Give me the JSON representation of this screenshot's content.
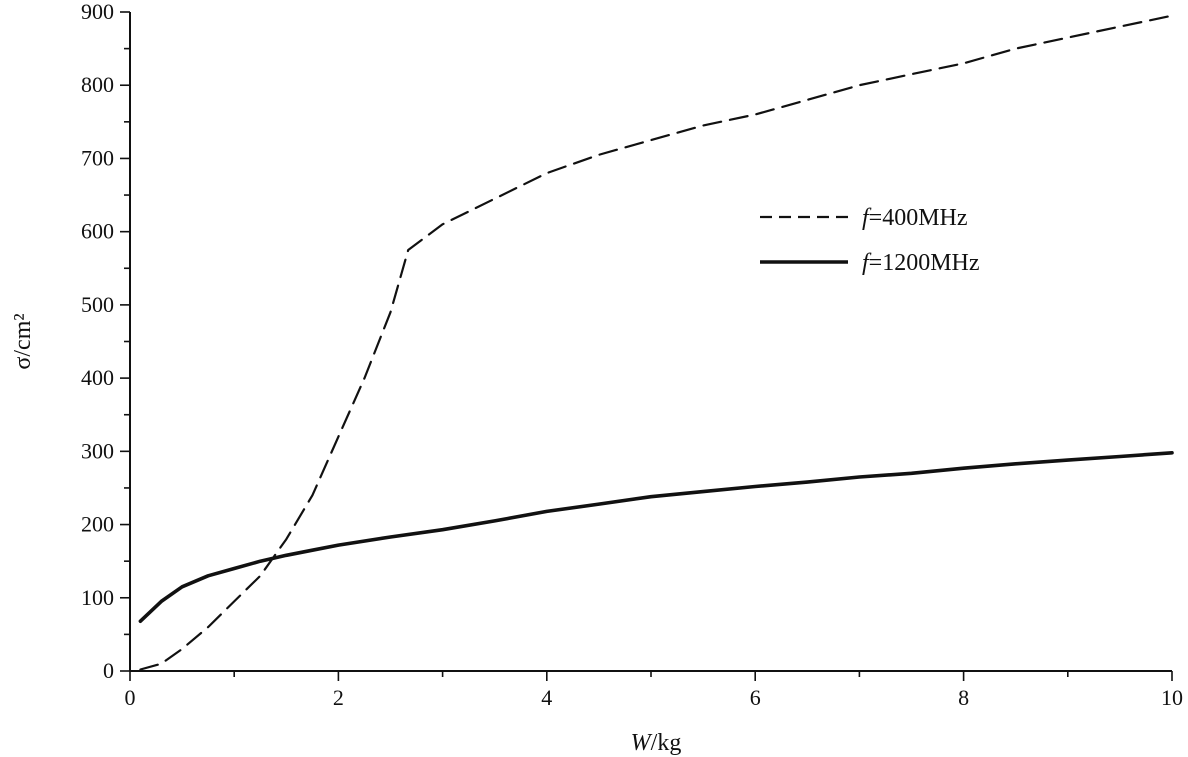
{
  "chart_data": {
    "type": "line",
    "title": "",
    "xlabel": "W/kg",
    "xlabel_parts": {
      "var": "W",
      "unit": "/kg"
    },
    "ylabel": "σ/cm²",
    "xlim": [
      0,
      10
    ],
    "ylim": [
      0,
      900
    ],
    "x_ticks": [
      0,
      2,
      4,
      6,
      8,
      10
    ],
    "x_minor_ticks": [
      1,
      3,
      5,
      7,
      9
    ],
    "y_ticks": [
      0,
      100,
      200,
      300,
      400,
      500,
      600,
      700,
      800,
      900
    ],
    "grid": false,
    "legend_position": "upper-right",
    "series": [
      {
        "name": "f=400MHz",
        "label_var": "f",
        "label_rest": "=400MHz",
        "style": "dashed",
        "color": "#111111",
        "points": [
          [
            0.1,
            2
          ],
          [
            0.3,
            10
          ],
          [
            0.5,
            30
          ],
          [
            0.75,
            60
          ],
          [
            1.0,
            95
          ],
          [
            1.25,
            130
          ],
          [
            1.5,
            180
          ],
          [
            1.75,
            240
          ],
          [
            2.0,
            320
          ],
          [
            2.25,
            400
          ],
          [
            2.5,
            490
          ],
          [
            2.67,
            575
          ],
          [
            3.0,
            610
          ],
          [
            3.5,
            645
          ],
          [
            4.0,
            680
          ],
          [
            4.5,
            705
          ],
          [
            5.0,
            725
          ],
          [
            5.5,
            745
          ],
          [
            6.0,
            760
          ],
          [
            6.5,
            780
          ],
          [
            7.0,
            800
          ],
          [
            7.5,
            815
          ],
          [
            8.0,
            830
          ],
          [
            8.5,
            850
          ],
          [
            9.0,
            865
          ],
          [
            9.5,
            880
          ],
          [
            10.0,
            895
          ]
        ]
      },
      {
        "name": "f=1200MHz",
        "label_var": "f",
        "label_rest": "=1200MHz",
        "style": "solid",
        "color": "#111111",
        "points": [
          [
            0.1,
            68
          ],
          [
            0.3,
            95
          ],
          [
            0.5,
            115
          ],
          [
            0.75,
            130
          ],
          [
            1.0,
            140
          ],
          [
            1.25,
            150
          ],
          [
            1.5,
            158
          ],
          [
            1.75,
            165
          ],
          [
            2.0,
            172
          ],
          [
            2.5,
            183
          ],
          [
            3.0,
            193
          ],
          [
            3.5,
            205
          ],
          [
            4.0,
            218
          ],
          [
            4.5,
            228
          ],
          [
            5.0,
            238
          ],
          [
            5.5,
            245
          ],
          [
            6.0,
            252
          ],
          [
            6.5,
            258
          ],
          [
            7.0,
            265
          ],
          [
            7.5,
            270
          ],
          [
            8.0,
            277
          ],
          [
            8.5,
            283
          ],
          [
            9.0,
            288
          ],
          [
            9.5,
            293
          ],
          [
            10.0,
            298
          ]
        ]
      }
    ]
  }
}
